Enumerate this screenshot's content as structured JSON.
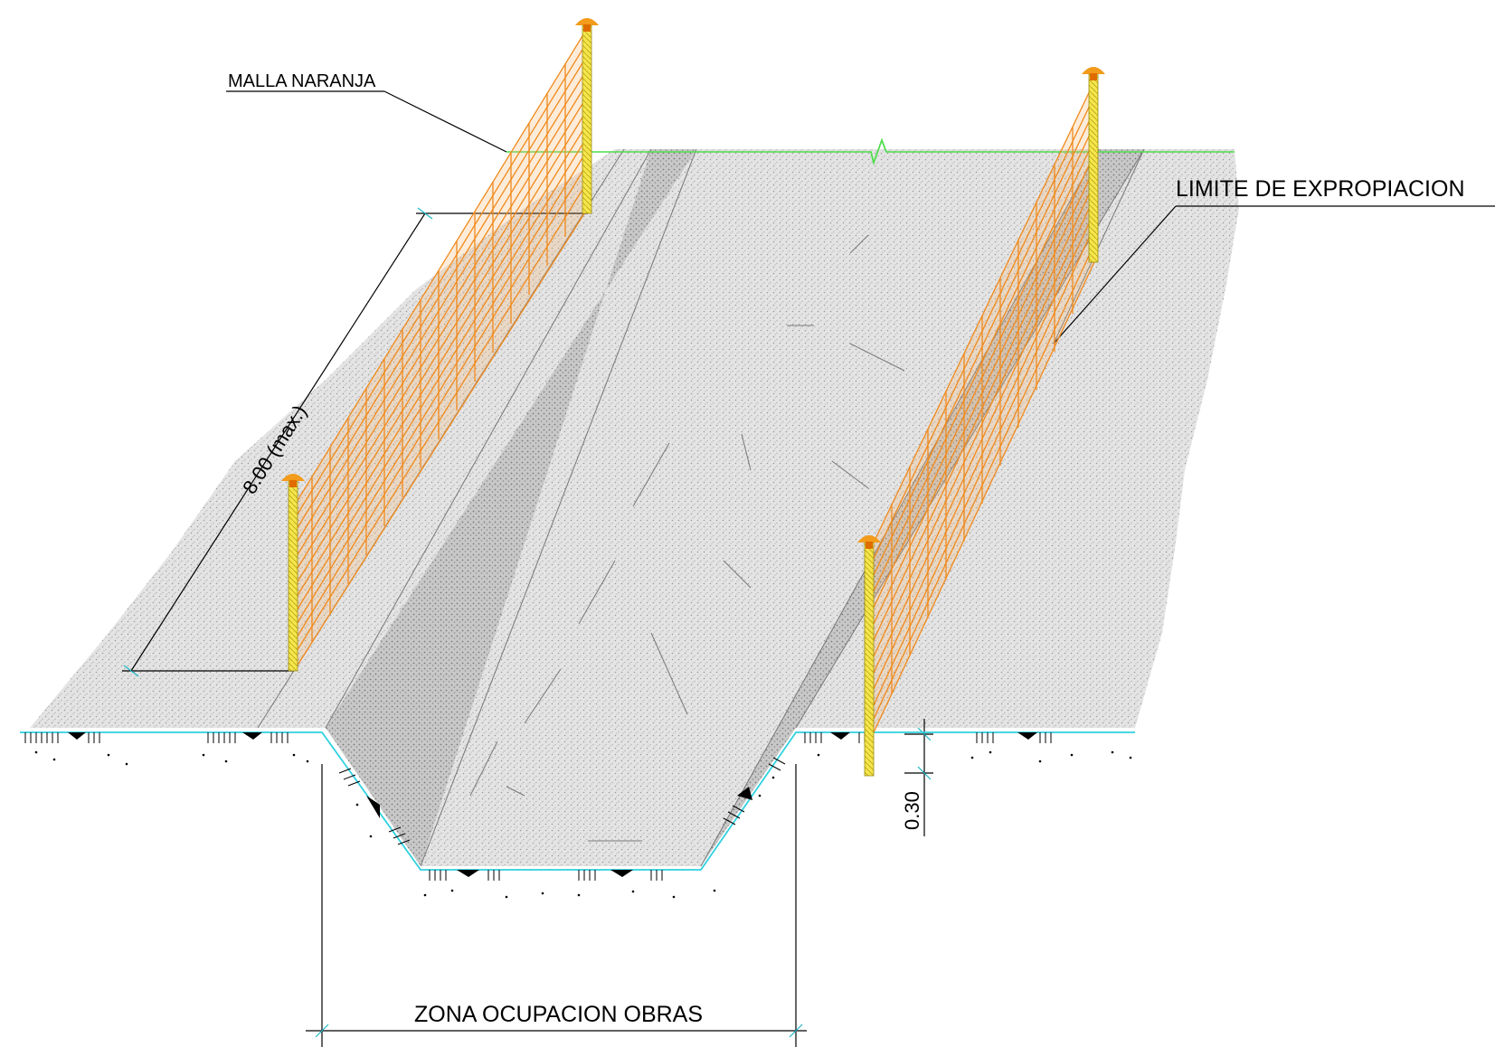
{
  "labels": {
    "mesh": "MALLA NARANJA",
    "expropriation_limit": "LIMITE DE EXPROPIACION",
    "post_spacing": "8.00 (max.)",
    "embedment_depth": "0.30",
    "work_zone": "ZONA OCUPACION OBRAS"
  },
  "colors": {
    "mesh": "#f08a1c",
    "post": "#f5e64a",
    "post_cap": "#f39b1a",
    "ground_line": "#4ddd4d",
    "section_line": "#2ed1e0",
    "terrain": "#dcdcdc"
  },
  "icons": [
    "post-cap-icon",
    "break-symbol-icon"
  ]
}
